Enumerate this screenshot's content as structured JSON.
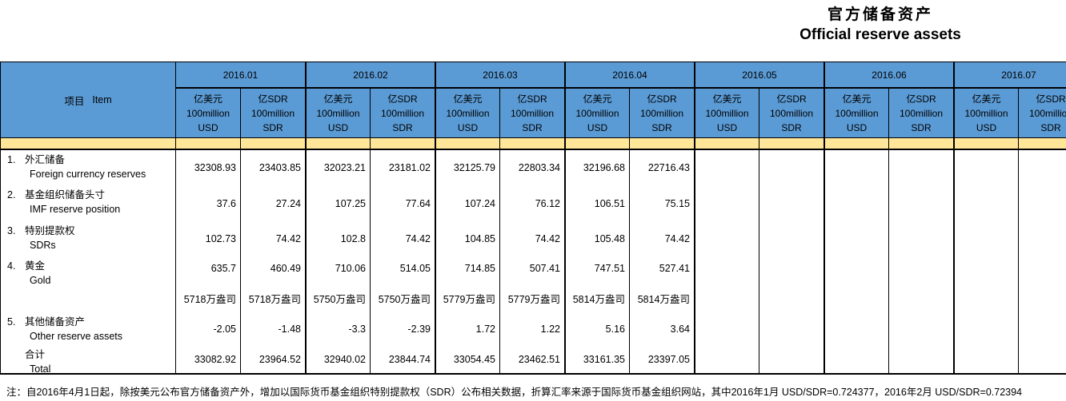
{
  "title": {
    "zh": "官方储备资产",
    "en": "Official reserve assets"
  },
  "table": {
    "item_header": {
      "zh": "项目",
      "en": "Item"
    },
    "months": [
      "2016.01",
      "2016.02",
      "2016.03",
      "2016.04",
      "2016.05",
      "2016.06",
      "2016.07"
    ],
    "units": {
      "usd": [
        "亿美元",
        "100million",
        "USD"
      ],
      "sdr": [
        "亿SDR",
        "100million",
        "SDR"
      ]
    },
    "rows": [
      {
        "no": "1.",
        "zh": "外汇储备",
        "en": "Foreign currency reserves",
        "values": [
          "32308.93",
          "23403.85",
          "32023.21",
          "23181.02",
          "32125.79",
          "22803.34",
          "32196.68",
          "22716.43",
          "",
          "",
          "",
          "",
          "",
          ""
        ]
      },
      {
        "no": "2.",
        "zh": "基金组织储备头寸",
        "en": "IMF reserve position",
        "values": [
          "37.6",
          "27.24",
          "107.25",
          "77.64",
          "107.24",
          "76.12",
          "106.51",
          "75.15",
          "",
          "",
          "",
          "",
          "",
          ""
        ]
      },
      {
        "no": "3.",
        "zh": "特别提款权",
        "en": "SDRs",
        "values": [
          "102.73",
          "74.42",
          "102.8",
          "74.42",
          "104.85",
          "74.42",
          "105.48",
          "74.42",
          "",
          "",
          "",
          "",
          "",
          ""
        ]
      },
      {
        "no": "4.",
        "zh": "黄金",
        "en": "Gold",
        "values": [
          "635.7",
          "460.49",
          "710.06",
          "514.05",
          "714.85",
          "507.41",
          "747.51",
          "527.41",
          "",
          "",
          "",
          "",
          "",
          ""
        ],
        "sub_values": [
          "5718万盎司",
          "5718万盎司",
          "5750万盎司",
          "5750万盎司",
          "5779万盎司",
          "5779万盎司",
          "5814万盎司",
          "5814万盎司",
          "",
          "",
          "",
          "",
          "",
          ""
        ]
      },
      {
        "no": "5.",
        "zh": "其他储备资产",
        "en": "Other reserve assets",
        "values": [
          "-2.05",
          "-1.48",
          "-3.3",
          "-2.39",
          "1.72",
          "1.22",
          "5.16",
          "3.64",
          "",
          "",
          "",
          "",
          "",
          ""
        ]
      },
      {
        "no": "",
        "zh": "合计",
        "en": "Total",
        "values": [
          "33082.92",
          "23964.52",
          "32940.02",
          "23844.74",
          "33054.45",
          "23462.51",
          "33161.35",
          "23397.05",
          "",
          "",
          "",
          "",
          "",
          ""
        ]
      }
    ]
  },
  "colors": {
    "header_blue": "#5B9BD5",
    "band_yellow": "#FFE699",
    "border": "#000000"
  },
  "footnote": "注：自2016年4月1日起，除按美元公布官方储备资产外，增加以国际货币基金组织特别提款权（SDR）公布相关数据，折算汇率来源于国际货币基金组织网站，其中2016年1月 USD/SDR=0.724377，2016年2月 USD/SDR=0.72394"
}
